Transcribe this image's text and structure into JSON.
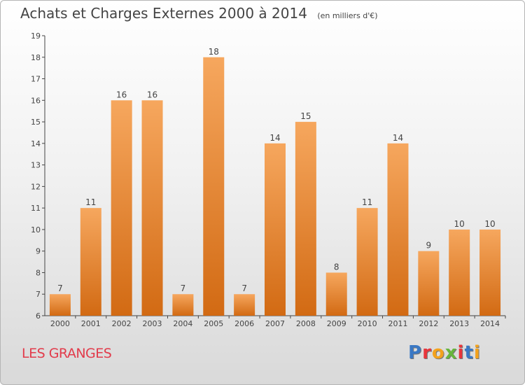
{
  "title": "Achats et Charges Externes 2000 à 2014",
  "unit": "(en milliers d'€)",
  "place": "LES GRANGES",
  "logo": {
    "text": "Proxiti",
    "colors": [
      "#3a78c4",
      "#e8353b",
      "#f3a21d",
      "#67b53c",
      "#e8353b",
      "#3a78c4",
      "#f3a21d"
    ]
  },
  "colors": {
    "bar_top": "#f6a75e",
    "bar_bottom": "#d26a13",
    "title": "#444444",
    "place": "#e23b4b"
  },
  "chart_data": {
    "type": "bar",
    "title": "Achats et Charges Externes 2000 à 2014",
    "subtitle": "(en milliers d'€)",
    "categories": [
      "2000",
      "2001",
      "2002",
      "2003",
      "2004",
      "2005",
      "2006",
      "2007",
      "2008",
      "2009",
      "2010",
      "2011",
      "2012",
      "2013",
      "2014"
    ],
    "values": [
      7,
      11,
      16,
      16,
      7,
      18,
      7,
      14,
      15,
      8,
      11,
      14,
      9,
      10,
      10
    ],
    "ylim": [
      6,
      19
    ],
    "yticks": [
      6,
      7,
      8,
      9,
      10,
      11,
      12,
      13,
      14,
      15,
      16,
      17,
      18,
      19
    ],
    "grid": false,
    "xlabel": "",
    "ylabel": ""
  }
}
